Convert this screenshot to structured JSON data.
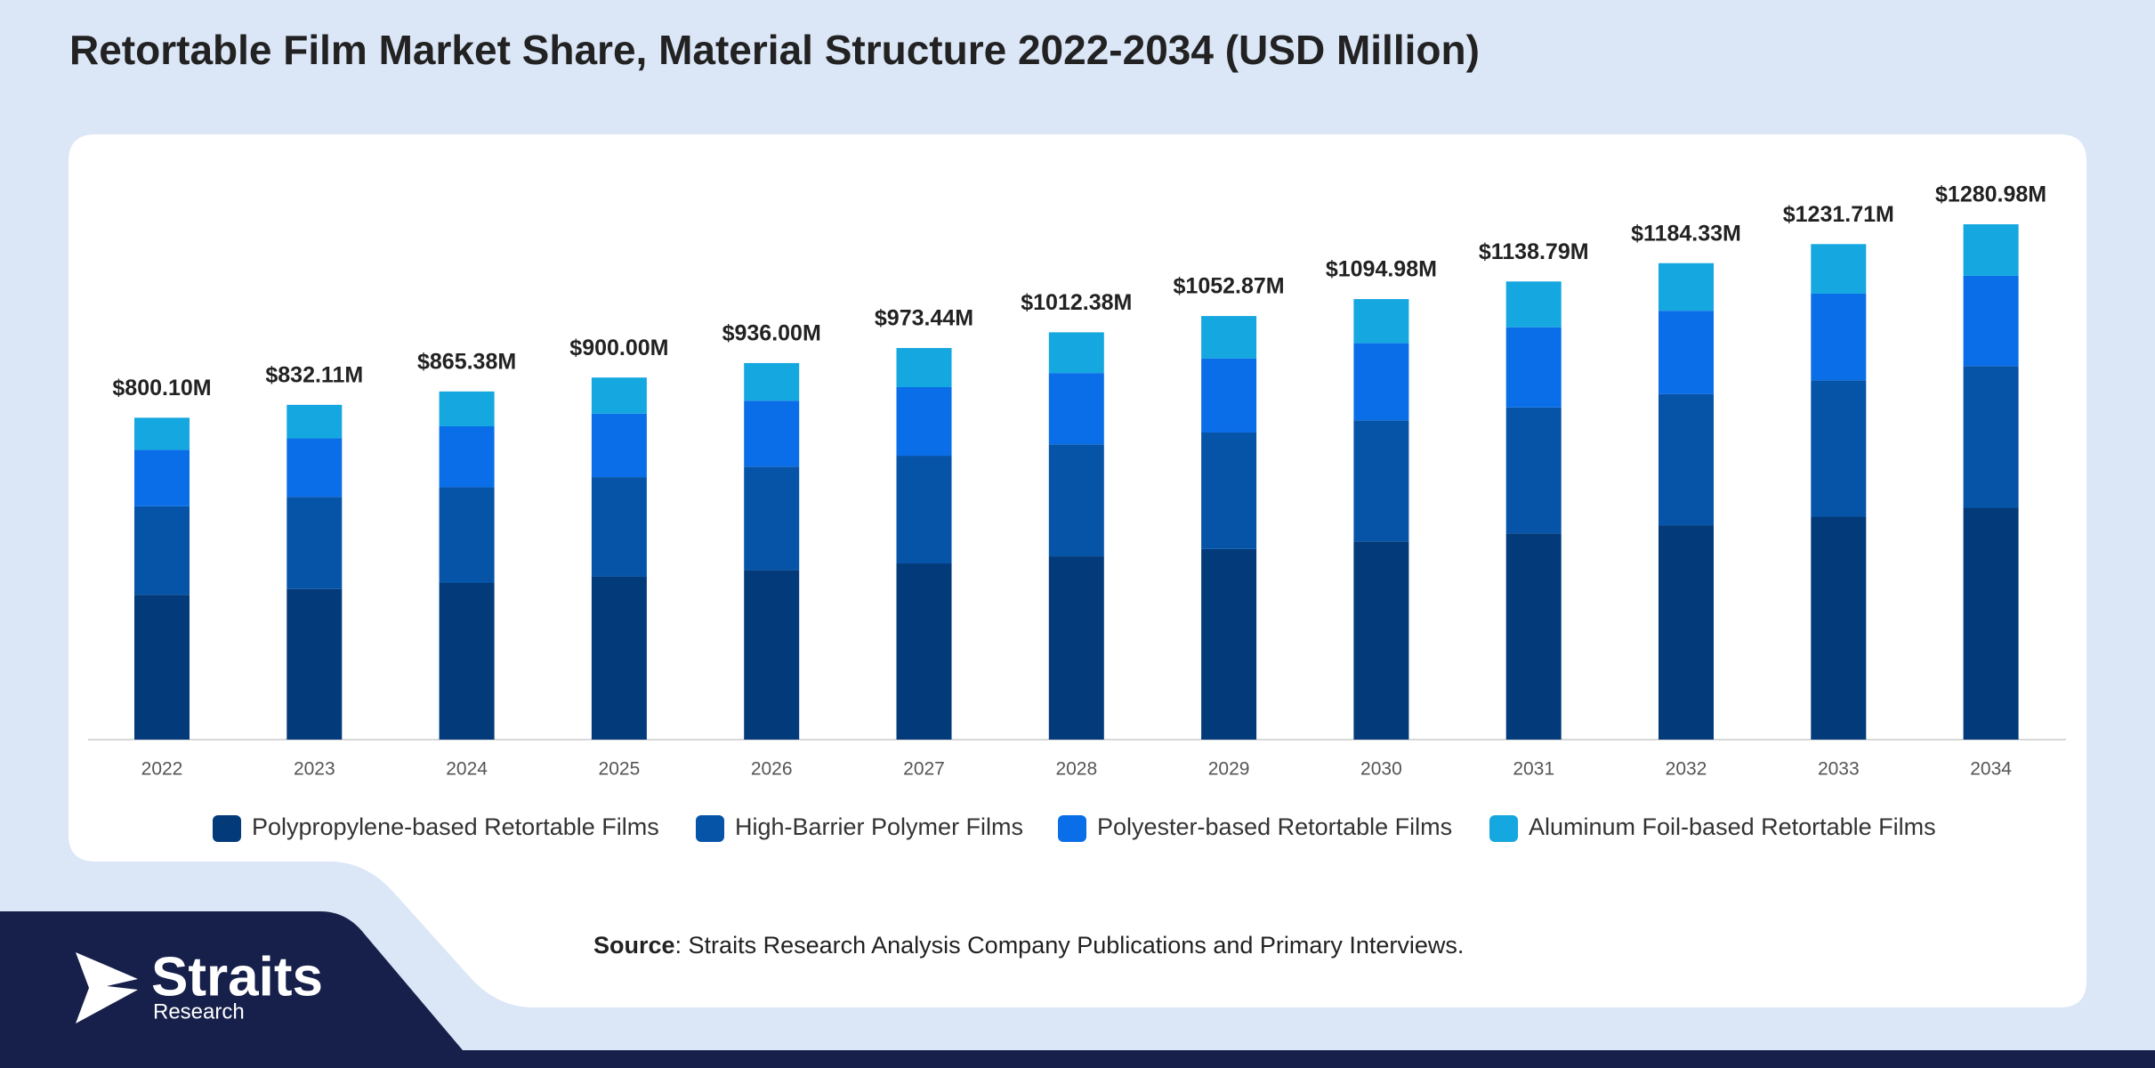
{
  "chart_data": {
    "type": "stacked_bar",
    "title": "Retortable Film Market Share, Material Structure 2022-2034 (USD Million)",
    "categories": [
      "2022",
      "2023",
      "2024",
      "2025",
      "2026",
      "2027",
      "2028",
      "2029",
      "2030",
      "2031",
      "2032",
      "2033",
      "2034"
    ],
    "series": [
      {
        "name": "Polypropylene-based Retortable Films",
        "color": "#023a7a",
        "values": [
          360.0,
          374.4,
          389.4,
          405.0,
          421.2,
          438.0,
          455.6,
          473.8,
          492.7,
          512.5,
          533.0,
          554.3,
          576.4
        ]
      },
      {
        "name": "High-Barrier Polymer Films",
        "color": "#0654a8",
        "values": [
          220.0,
          228.8,
          238.0,
          247.5,
          257.4,
          267.7,
          278.4,
          289.5,
          301.1,
          313.2,
          325.7,
          338.7,
          352.3
        ]
      },
      {
        "name": "Polyester-based Retortable Films",
        "color": "#0a6ee8",
        "values": [
          140.0,
          145.6,
          151.4,
          157.5,
          163.8,
          170.4,
          177.2,
          184.3,
          191.6,
          199.3,
          207.3,
          215.5,
          224.2
        ]
      },
      {
        "name": "Aluminum Foil-based Retortable Films",
        "color": "#14a7e0",
        "values": [
          80.1,
          83.3,
          86.6,
          90.0,
          93.6,
          97.3,
          101.2,
          105.3,
          109.6,
          113.8,
          118.3,
          123.2,
          128.1
        ]
      }
    ],
    "totals": {
      "values": [
        800.1,
        832.11,
        865.38,
        900.0,
        936.0,
        973.44,
        1012.38,
        1052.87,
        1094.98,
        1138.79,
        1184.33,
        1231.71,
        1280.98
      ],
      "value_labels": [
        "$800.10M",
        "$832.11M",
        "$865.38M",
        "$900.00M",
        "$936.00M",
        "$973.44M",
        "$1012.38M",
        "$1052.87M",
        "$1094.98M",
        "$1138.79M",
        "$1184.33M",
        "$1231.71M",
        "$1280.98M"
      ]
    },
    "legend": "bottom"
  },
  "source": {
    "label": "Source",
    "text": ": Straits Research Analysis Company Publications and Primary Interviews."
  },
  "brand": {
    "name": "Straits",
    "sub": "Research"
  }
}
